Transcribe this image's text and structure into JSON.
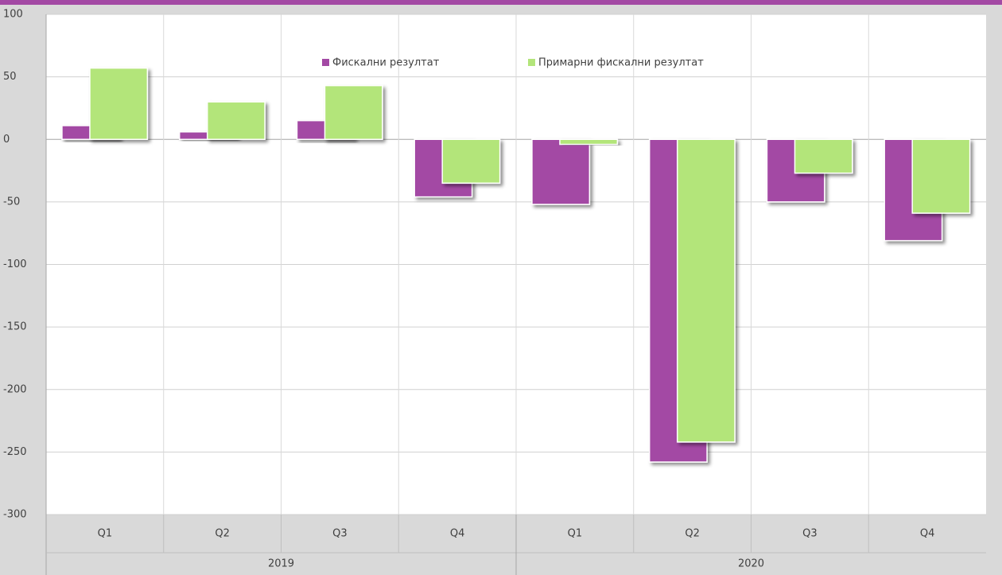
{
  "chart_data": {
    "type": "bar",
    "categories": [
      "Q1",
      "Q2",
      "Q3",
      "Q4",
      "Q1",
      "Q2",
      "Q3",
      "Q4"
    ],
    "group_labels": [
      "2019",
      "2020"
    ],
    "series": [
      {
        "name": "Фискални резултат",
        "color": "#a349a4",
        "values": [
          11,
          6,
          15,
          -46,
          -52,
          -258,
          -50,
          -81
        ]
      },
      {
        "name": "Примарни фискални резултат",
        "color": "#b3e57a",
        "values": [
          57,
          30,
          43,
          -35,
          -4,
          -242,
          -27,
          -59
        ]
      }
    ],
    "ylim": [
      -300,
      100
    ],
    "yticks": [
      -300,
      -250,
      -200,
      -150,
      -100,
      -50,
      0,
      50,
      100
    ],
    "grid": true,
    "legend": "top"
  }
}
